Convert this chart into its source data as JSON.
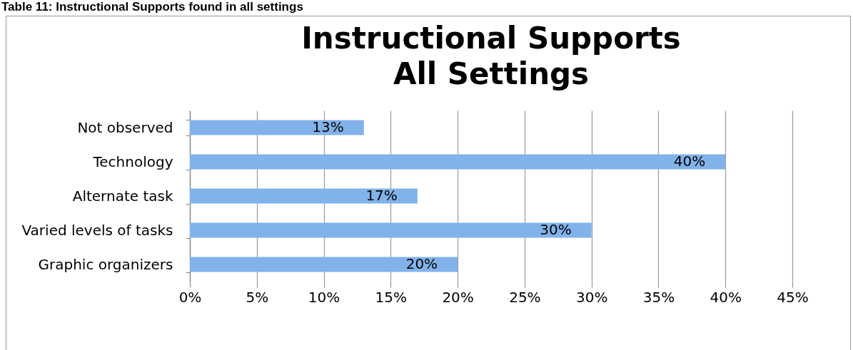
{
  "chart_data": {
    "type": "bar",
    "orientation": "horizontal",
    "title": "Instructional Supports\nAll Settings",
    "annotations": [
      "Table 11: Instructional Supports found in all settings"
    ],
    "categories": [
      "Not observed",
      "Technology",
      "Alternate task",
      "Varied levels of tasks",
      "Graphic organizers"
    ],
    "values": [
      13,
      40,
      17,
      30,
      20
    ],
    "value_labels": [
      "13%",
      "40%",
      "17%",
      "30%",
      "20%"
    ],
    "color": "#82b2ea",
    "xlim": [
      0,
      45
    ],
    "xticks": [
      {
        "value": 0,
        "label": "0%"
      },
      {
        "value": 5,
        "label": "5%"
      },
      {
        "value": 10,
        "label": "10%"
      },
      {
        "value": 15,
        "label": "15%"
      },
      {
        "value": 20,
        "label": "20%"
      },
      {
        "value": 25,
        "label": "25%"
      },
      {
        "value": 30,
        "label": "30%"
      },
      {
        "value": 35,
        "label": "35%"
      },
      {
        "value": 40,
        "label": "40%"
      },
      {
        "value": 45,
        "label": "45%"
      }
    ],
    "grid": "x"
  }
}
